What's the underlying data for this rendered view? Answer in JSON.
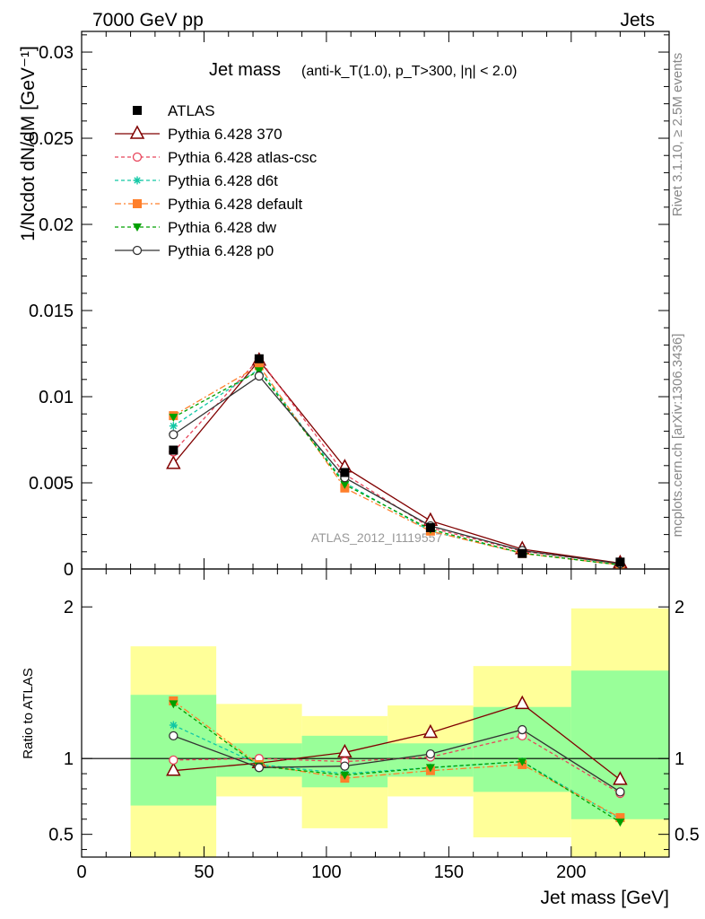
{
  "header": {
    "left": "7000 GeV pp",
    "right": "Jets"
  },
  "side_labels": {
    "rivet": "Rivet 3.1.10, ≥ 2.5M events",
    "source": "mcplots.cern.ch [arXiv:1306.3436]"
  },
  "chart_data": [
    {
      "type": "line",
      "title_main": "Jet mass",
      "title_sub": "(anti-k_T(1.0), p_T>300, |η| < 2.0)",
      "ylabel": "1/Ncdot dN/dM [GeV⁻¹]",
      "watermark": "ATLAS_2012_I1119557",
      "xlim": [
        0,
        240
      ],
      "ylim": [
        0,
        0.0312
      ],
      "y_ticks": [
        {
          "v": 0.005,
          "t": "0.005"
        },
        {
          "v": 0.01,
          "t": "0.01"
        },
        {
          "v": 0.015,
          "t": "0.015"
        },
        {
          "v": 0.02,
          "t": "0.02"
        },
        {
          "v": 0.025,
          "t": "0.025"
        },
        {
          "v": 0.03,
          "t": "0.03"
        }
      ],
      "x": [
        37.5,
        72.5,
        107.5,
        142.5,
        180,
        220
      ],
      "data": {
        "name": "ATLAS",
        "values": [
          0.0069,
          0.0122,
          0.0056,
          0.0024,
          0.0009,
          0.0004
        ]
      },
      "series": [
        {
          "name": "Pythia 6.428 370",
          "color": "#800000",
          "marker": "triangle-open",
          "dash": "",
          "values": [
            0.0061,
            0.0121,
            0.0059,
            0.0028,
            0.00115,
            0.00034
          ]
        },
        {
          "name": "Pythia 6.428 atlas-csc",
          "color": "#e8445a",
          "marker": "circle-open",
          "dash": "4,3",
          "values": [
            0.0068,
            0.0122,
            0.0055,
            0.0024,
            0.00103,
            0.00031
          ]
        },
        {
          "name": "Pythia 6.428 d6t",
          "color": "#11c7a5",
          "marker": "star",
          "dash": "4,3",
          "values": [
            0.0083,
            0.0116,
            0.005,
            0.0022,
            0.00092,
            0.00024
          ]
        },
        {
          "name": "Pythia 6.428 default",
          "color": "#ff7f2a",
          "marker": "square",
          "dash": "7,3,2,3",
          "values": [
            0.0089,
            0.0118,
            0.0047,
            0.0022,
            0.0009,
            0.00024
          ]
        },
        {
          "name": "Pythia 6.428 dw",
          "color": "#00a000",
          "marker": "triangle-down",
          "dash": "4,3",
          "values": [
            0.0088,
            0.0115,
            0.0049,
            0.0023,
            0.00092,
            0.00023
          ]
        },
        {
          "name": "Pythia 6.428 p0",
          "color": "#333333",
          "marker": "circle-open",
          "dash": "",
          "values": [
            0.0078,
            0.0112,
            0.0053,
            0.0025,
            0.00107,
            0.00031
          ]
        }
      ]
    },
    {
      "type": "line",
      "ylabel": "Ratio to ATLAS",
      "xlabel": "Jet mass [GeV]",
      "xlim": [
        0,
        240
      ],
      "ylim": [
        0.35,
        2.25
      ],
      "x_ticks": [
        0,
        50,
        100,
        150,
        200
      ],
      "y_ticks": [
        {
          "v": 0.5,
          "t": "0.5"
        },
        {
          "v": 1,
          "t": "1"
        },
        {
          "v": 2,
          "t": "2"
        }
      ],
      "bands": [
        {
          "x0": 20,
          "x1": 55,
          "inner": [
            0.69,
            1.42
          ],
          "outer": [
            0.35,
            1.74
          ]
        },
        {
          "x0": 55,
          "x1": 90,
          "inner": [
            0.88,
            1.1
          ],
          "outer": [
            0.75,
            1.36
          ]
        },
        {
          "x0": 90,
          "x1": 125,
          "inner": [
            0.81,
            1.15
          ],
          "outer": [
            0.54,
            1.28
          ]
        },
        {
          "x0": 125,
          "x1": 160,
          "inner": [
            0.88,
            1.1
          ],
          "outer": [
            0.75,
            1.35
          ]
        },
        {
          "x0": 160,
          "x1": 200,
          "inner": [
            0.78,
            1.34
          ],
          "outer": [
            0.48,
            1.61
          ]
        },
        {
          "x0": 200,
          "x1": 240,
          "inner": [
            0.6,
            1.58
          ],
          "outer": [
            0.35,
            1.99
          ]
        }
      ],
      "x": [
        37.5,
        72.5,
        107.5,
        142.5,
        180,
        220
      ],
      "series": [
        {
          "name": "Pythia 6.428 370",
          "values": [
            0.92,
            0.97,
            1.04,
            1.17,
            1.36,
            0.86
          ]
        },
        {
          "name": "Pythia 6.428 atlas-csc",
          "values": [
            0.99,
            1.0,
            0.98,
            1.01,
            1.15,
            0.77
          ]
        },
        {
          "name": "Pythia 6.428 d6t",
          "values": [
            1.22,
            0.96,
            0.9,
            0.94,
            0.98,
            0.6
          ]
        },
        {
          "name": "Pythia 6.428 default",
          "values": [
            1.38,
            0.96,
            0.87,
            0.92,
            0.96,
            0.61
          ]
        },
        {
          "name": "Pythia 6.428 dw",
          "values": [
            1.36,
            0.95,
            0.89,
            0.94,
            0.98,
            0.58
          ]
        },
        {
          "name": "Pythia 6.428 p0",
          "values": [
            1.15,
            0.94,
            0.95,
            1.03,
            1.19,
            0.78
          ]
        }
      ]
    }
  ]
}
